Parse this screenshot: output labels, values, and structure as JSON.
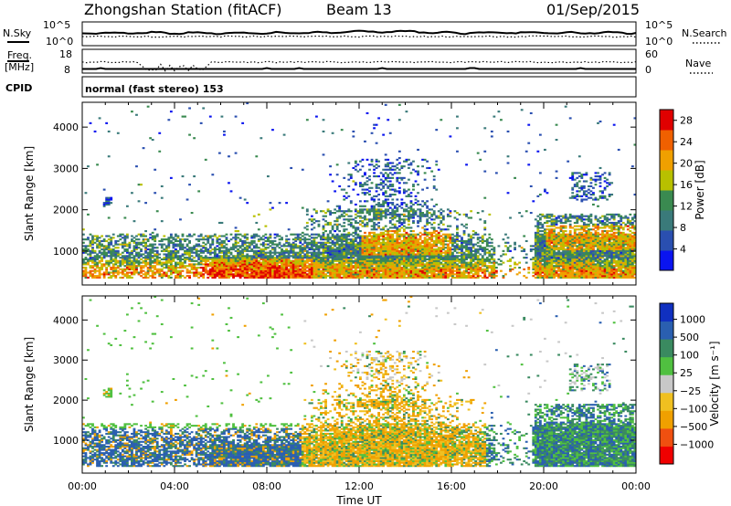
{
  "header": {
    "station": "Zhongshan Station (fitACF)",
    "beam": "Beam 13",
    "date": "01/Sep/2015"
  },
  "summary_panel": {
    "nsky_label": "N.Sky",
    "nsearch_label": "N.Search",
    "freq_label_line1": "Freq.",
    "freq_label_line2": "[MHz]",
    "nave_label": "Nave",
    "cpid_label": "CPID",
    "cpid_text": "normal (fast stereo) 153",
    "nsky_ticks": [
      "10^5",
      "10^0"
    ],
    "nsearch_ticks": [
      "10^5",
      "10^0"
    ],
    "freq_ticks": [
      "18",
      "8"
    ],
    "nave_ticks": [
      "60",
      "0"
    ]
  },
  "colors": {
    "power_scale": [
      "#0a14f0",
      "#2a4fb0",
      "#3a7a7a",
      "#3a8a50",
      "#b8c000",
      "#f0a000",
      "#f06000",
      "#e00000"
    ],
    "velocity_scale": [
      "#f00000",
      "#f05010",
      "#f0a000",
      "#f0c020",
      "#c8c8c8",
      "#50c040",
      "#3a8a60",
      "#2a5fb0",
      "#1030c0"
    ]
  },
  "chart_data": [
    {
      "type": "heatmap",
      "name": "power",
      "xlabel": "",
      "ylabel": "Slant Range [km]",
      "x_range_hours": [
        0,
        24
      ],
      "ylim": [
        180,
        4600
      ],
      "y_ticks": [
        1000,
        2000,
        3000,
        4000
      ],
      "colorbar_label": "Power [dB]",
      "colorbar_range": [
        0,
        30
      ],
      "colorbar_ticks": [
        4,
        8,
        12,
        16,
        20,
        24,
        28
      ]
    },
    {
      "type": "heatmap",
      "name": "velocity",
      "xlabel": "Time UT",
      "ylabel": "Slant Range [km]",
      "x_range_hours": [
        0,
        24
      ],
      "x_tick_labels": [
        "00:00",
        "04:00",
        "08:00",
        "12:00",
        "16:00",
        "20:00",
        "00:00"
      ],
      "ylim": [
        180,
        4600
      ],
      "y_ticks": [
        1000,
        2000,
        3000,
        4000
      ],
      "colorbar_label": "Velocity [m s⁻¹]",
      "colorbar_ticks": [
        "1000",
        "500",
        "100",
        "25",
        "−25",
        "−100",
        "−500",
        "−1000"
      ]
    }
  ]
}
